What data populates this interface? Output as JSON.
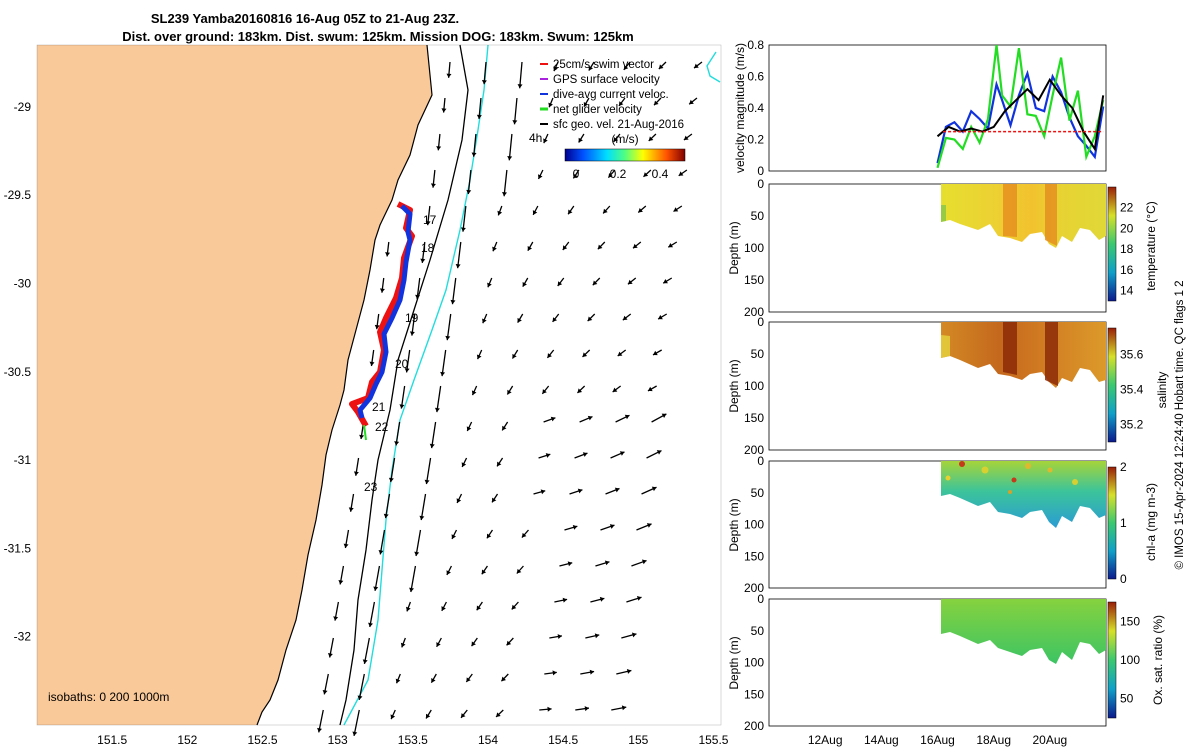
{
  "header": {
    "title_line1": "SL239 Yamba20160816 16-Aug 05Z to 21-Aug 23Z.",
    "title_line2": "Dist. over ground: 183km. Dist. swum: 125km. Mission DOG: 183km. Swum: 125km"
  },
  "colors": {
    "land": "#f9c99a",
    "track_red": "#ee1111",
    "track_blue": "#1133dd",
    "isobath_cyan": "#22dddd",
    "net_velocity_green": "#22dd22",
    "gps_velocity_purple": "#aa22dd",
    "sfc_geo_black": "#000000"
  },
  "map": {
    "lon_ticks": [
      "151.5",
      "152",
      "152.5",
      "153",
      "153.5",
      "154",
      "154.5",
      "155",
      "155.5"
    ],
    "lat_ticks": [
      "-29",
      "-29.5",
      "-30",
      "-30.5",
      "-31",
      "-31.5",
      "-32"
    ],
    "lon_range": [
      151.0,
      155.55
    ],
    "lat_range": [
      -32.5,
      -28.65
    ],
    "day_labels": [
      "17",
      "18",
      "19",
      "20",
      "21",
      "22",
      "23",
      "4h"
    ],
    "isobath_label": "isobaths: 0   200  1000m",
    "legend": {
      "items": [
        "25cm/s swim vector",
        "GPS surface velocity",
        "dive-avg current veloc.",
        "net glider velocity",
        "sfc geo. vel. 21-Aug-2016"
      ],
      "colorbar_title": "(m/s)",
      "colorbar_ticks": [
        "0",
        "0.2",
        "0.4"
      ]
    }
  },
  "side_note": "© IMOS 15-Apr-2024 12:24:40 Hobart time. QC flags 1  2",
  "panels": {
    "x_ticks": [
      "12Aug",
      "14Aug",
      "16Aug",
      "18Aug",
      "20Aug"
    ],
    "depth_label": "Depth (m)",
    "depth_ticks": [
      "0",
      "50",
      "100",
      "150",
      "200"
    ],
    "velocity": {
      "ylabel": "velocity magnitude (m/s)",
      "y_ticks": [
        "0",
        "0.2",
        "0.4",
        "0.6",
        "0.8"
      ]
    },
    "temperature": {
      "cbar_label": "temperature (°C)",
      "cbar_ticks": [
        "14",
        "16",
        "18",
        "20",
        "22"
      ]
    },
    "salinity": {
      "cbar_label": "salinity",
      "cbar_ticks": [
        "35.2",
        "35.4",
        "35.6"
      ]
    },
    "chla": {
      "cbar_label": "chl-a (mg m-3)",
      "cbar_ticks": [
        "0",
        "1",
        "2"
      ]
    },
    "oxygen": {
      "cbar_label": "Ox. sat. ratio (%)",
      "cbar_ticks": [
        "50",
        "100",
        "150"
      ]
    }
  },
  "chart_data": [
    {
      "type": "line",
      "ylabel": "velocity magnitude (m/s)",
      "ylim": [
        0,
        0.8
      ],
      "x_unit": "day of Aug 2016",
      "xlim": [
        10.0,
        22.0
      ],
      "series": [
        {
          "color": "#1133dd",
          "x": [
            16.0,
            16.3,
            16.6,
            16.9,
            17.2,
            17.5,
            17.8,
            18.1,
            18.3,
            18.6,
            18.9,
            19.2,
            19.5,
            19.8,
            20.1,
            20.4,
            20.7,
            21.0,
            21.3,
            21.6,
            21.9
          ],
          "y": [
            0.05,
            0.28,
            0.31,
            0.25,
            0.38,
            0.33,
            0.27,
            0.55,
            0.45,
            0.29,
            0.48,
            0.62,
            0.4,
            0.38,
            0.6,
            0.5,
            0.34,
            0.22,
            0.16,
            0.09,
            0.41
          ]
        },
        {
          "color": "#22dd22",
          "x": [
            16.0,
            16.3,
            16.6,
            16.9,
            17.2,
            17.5,
            17.8,
            18.1,
            18.3,
            18.6,
            18.9,
            19.2,
            19.5,
            19.8,
            20.1,
            20.4,
            20.7,
            21.0,
            21.3,
            21.6,
            21.9
          ],
          "y": [
            0.02,
            0.21,
            0.2,
            0.14,
            0.28,
            0.18,
            0.33,
            0.8,
            0.48,
            0.41,
            0.78,
            0.36,
            0.35,
            0.22,
            0.48,
            0.72,
            0.32,
            0.51,
            0.09,
            0.22,
            0.45
          ]
        },
        {
          "color": "#000000",
          "x": [
            16.0,
            16.4,
            16.8,
            17.2,
            17.6,
            18.0,
            18.4,
            18.8,
            19.2,
            19.6,
            20.0,
            20.4,
            20.8,
            21.2,
            21.6,
            21.9
          ],
          "y": [
            0.22,
            0.28,
            0.25,
            0.27,
            0.25,
            0.28,
            0.38,
            0.45,
            0.52,
            0.45,
            0.58,
            0.48,
            0.4,
            0.25,
            0.14,
            0.48
          ]
        },
        {
          "color": "#ee1111",
          "x": [
            16.2,
            21.9
          ],
          "y": [
            0.25,
            0.25
          ]
        }
      ]
    },
    {
      "type": "heatmap",
      "ylabel": "Depth (m)",
      "cbar_label": "temperature (°C)",
      "clim": [
        13,
        24
      ],
      "ylim": [
        200,
        0
      ]
    },
    {
      "type": "heatmap",
      "ylabel": "Depth (m)",
      "cbar_label": "salinity",
      "clim": [
        35.1,
        35.75
      ],
      "ylim": [
        200,
        0
      ]
    },
    {
      "type": "heatmap",
      "ylabel": "Depth (m)",
      "cbar_label": "chl-a (mg m-3)",
      "clim": [
        0,
        2
      ],
      "ylim": [
        200,
        0
      ]
    },
    {
      "type": "heatmap",
      "ylabel": "Depth (m)",
      "cbar_label": "Ox. sat. ratio (%)",
      "clim": [
        25,
        175
      ],
      "ylim": [
        200,
        0
      ]
    }
  ]
}
